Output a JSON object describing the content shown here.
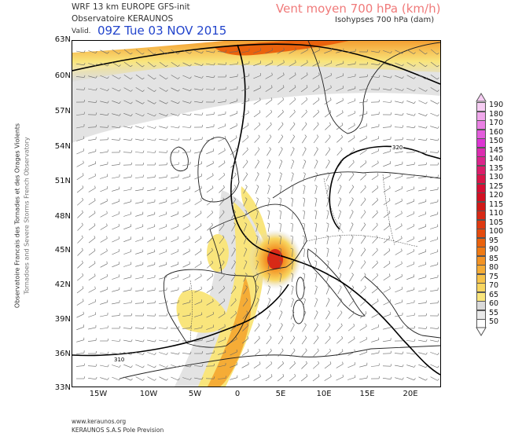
{
  "header": {
    "model": "WRF 13 km EUROPE   GFS-init",
    "org": "Observatoire KERAUNOS",
    "valid_prefix": "Valid.",
    "valid_time": "09Z Tue 03 NOV 2015",
    "title": "Vent moyen 700 hPa (km/h)",
    "subtitle": "Isohypses 700 hPa (dam)"
  },
  "map": {
    "lat_labels": [
      "63N",
      "60N",
      "57N",
      "54N",
      "51N",
      "48N",
      "45N",
      "42N",
      "39N",
      "36N",
      "33N"
    ],
    "lon_labels": [
      "15W",
      "10W",
      "5W",
      "0",
      "5E",
      "10E",
      "15E",
      "20E"
    ],
    "contour_labels": [
      "320",
      "310"
    ]
  },
  "colorbar": {
    "values": [
      "190",
      "180",
      "170",
      "160",
      "150",
      "145",
      "140",
      "135",
      "130",
      "125",
      "120",
      "115",
      "110",
      "105",
      "100",
      "95",
      "90",
      "85",
      "80",
      "75",
      "70",
      "65",
      "60",
      "55",
      "50"
    ],
    "colors": [
      "#f6cdf3",
      "#f0a8ec",
      "#ea80e4",
      "#e35ddc",
      "#dd35d3",
      "#dc2db0",
      "#db258c",
      "#db1d6a",
      "#d91548",
      "#d60e34",
      "#d31022",
      "#d11a18",
      "#d72916",
      "#de3a12",
      "#e44b0e",
      "#ea620d",
      "#ef7a14",
      "#f39324",
      "#f5ac36",
      "#f7c34a",
      "#f8d660",
      "#f9e57c",
      "#dadada",
      "#eaeaea",
      "#ffffff"
    ]
  },
  "footer": {
    "site": "www.keraunos.org",
    "credit": "KERAUNOS S.A.S Pole Prevision"
  },
  "side": {
    "line1": "Observatoire Francais des Tornades et des Orages Violents",
    "line2": "Tornadoes and Severe Storms French Observatory"
  }
}
